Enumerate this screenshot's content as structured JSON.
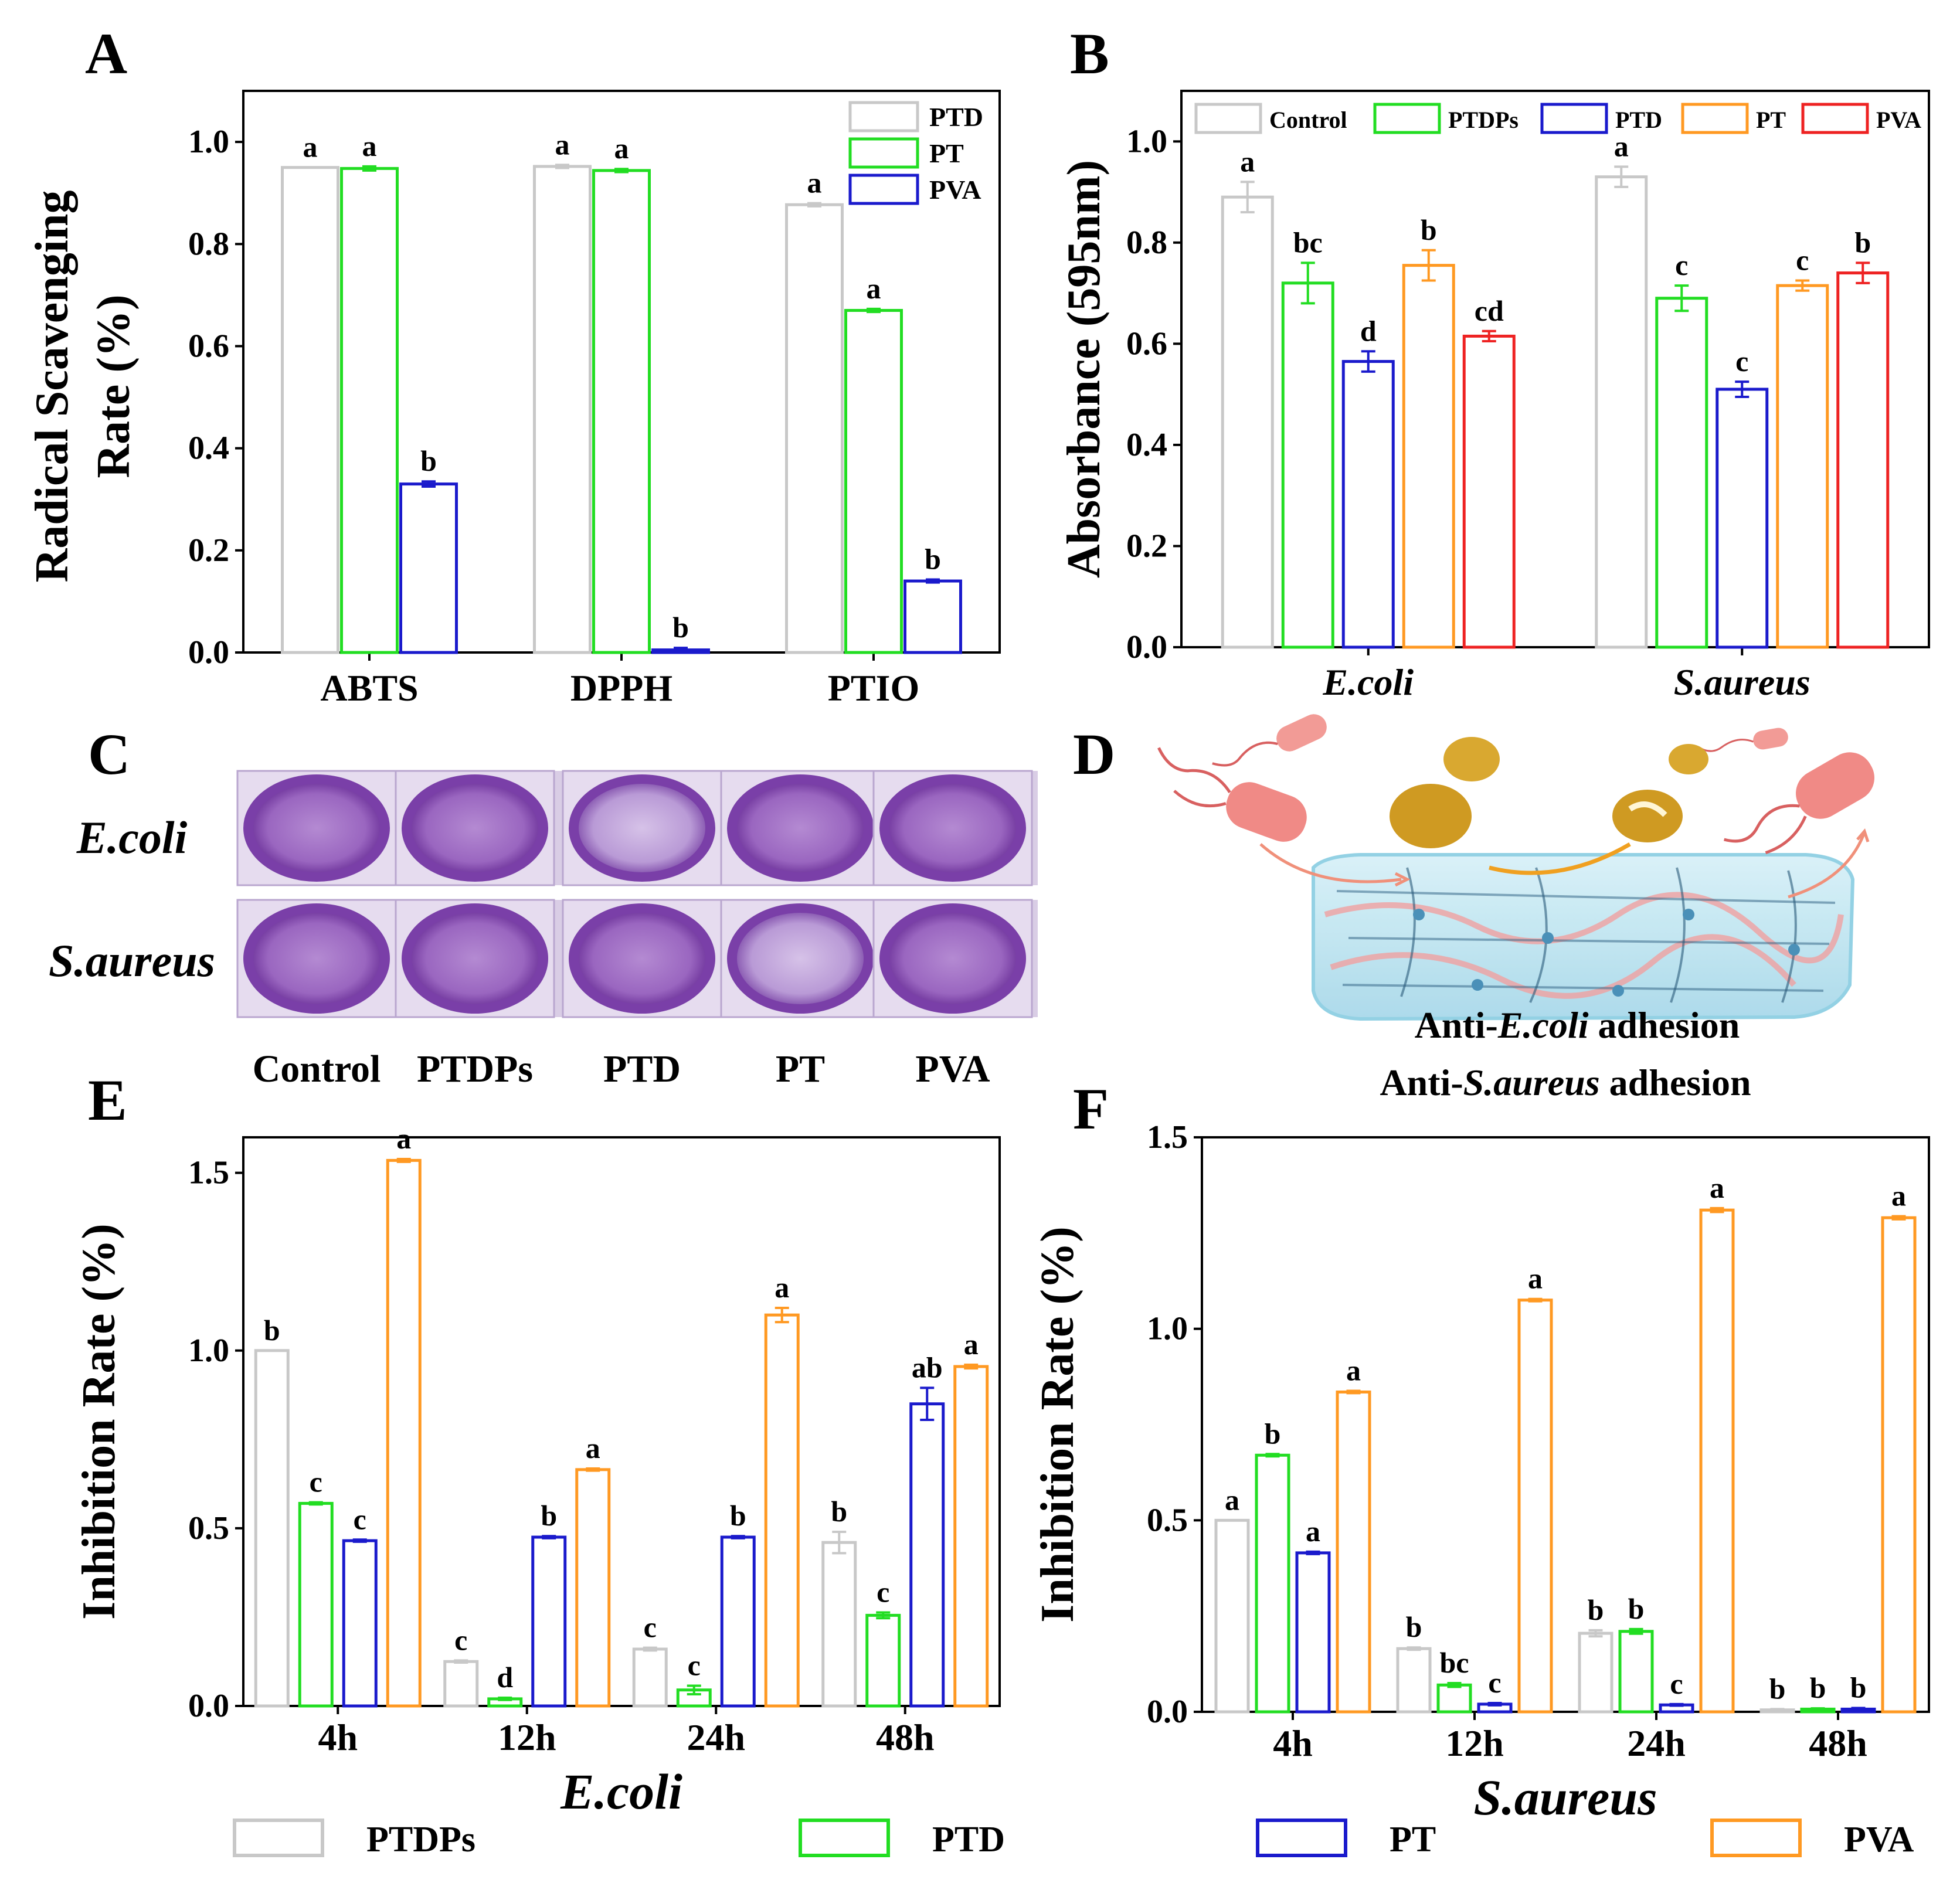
{
  "panel_labels": {
    "a": "A",
    "b": "B",
    "c": "C",
    "d": "D",
    "e": "E",
    "f": "F"
  },
  "colors": {
    "gray": "#c8c8c8",
    "green": "#22dd22",
    "blue": "#1a1acc",
    "orange": "#ff9922",
    "red": "#ee2222",
    "purple": "#8a4fb0",
    "purple_light": "#c9a8dd",
    "purple_dark": "#5f2a8a",
    "hydrogel": "#bfe6f2",
    "bacteria": "#f08a86",
    "particle": "#d9a830"
  },
  "chart_data": [
    {
      "id": "A",
      "type": "bar",
      "ylabel_line1": "Radical Scavenging",
      "ylabel_line2": "Rate (%)",
      "categories": [
        "ABTS",
        "DPPH",
        "PTIO"
      ],
      "ylim": [
        0,
        1.1
      ],
      "yticks": [
        "0.0",
        "0.2",
        "0.4",
        "0.6",
        "0.8",
        "1.0"
      ],
      "legend_position": "top-right",
      "series": [
        {
          "name": "PTD",
          "color": "gray",
          "values": [
            0.95,
            0.952,
            0.877
          ],
          "errors": [
            0,
            0.003,
            0.003
          ],
          "letters": [
            "a",
            "a",
            "a"
          ]
        },
        {
          "name": "PT",
          "color": "green",
          "values": [
            0.948,
            0.944,
            0.67
          ],
          "errors": [
            0.004,
            0.003,
            0.003
          ],
          "letters": [
            "a",
            "a",
            "a"
          ]
        },
        {
          "name": "PVA",
          "color": "blue",
          "values": [
            0.33,
            0.005,
            0.14
          ],
          "errors": [
            0.005,
            0.004,
            0.003
          ],
          "letters": [
            "b",
            "b",
            "b"
          ]
        }
      ]
    },
    {
      "id": "B",
      "type": "bar",
      "ylabel": "Absorbance (595nm)",
      "categories": [
        "E.coli",
        "S.aureus"
      ],
      "ylim": [
        0,
        1.1
      ],
      "yticks": [
        "0.0",
        "0.2",
        "0.4",
        "0.6",
        "0.8",
        "1.0"
      ],
      "legend_position": "top",
      "series": [
        {
          "name": "Control",
          "color": "gray",
          "values": [
            0.89,
            0.93
          ],
          "errors": [
            0.03,
            0.02
          ],
          "letters": [
            "a",
            "a"
          ]
        },
        {
          "name": "PTDPs",
          "color": "green",
          "values": [
            0.72,
            0.69
          ],
          "errors": [
            0.04,
            0.025
          ],
          "letters": [
            "bc",
            "c"
          ]
        },
        {
          "name": "PTD",
          "color": "blue",
          "values": [
            0.565,
            0.51
          ],
          "errors": [
            0.02,
            0.015
          ],
          "letters": [
            "d",
            "c"
          ]
        },
        {
          "name": "PT",
          "color": "orange",
          "values": [
            0.755,
            0.715
          ],
          "errors": [
            0.03,
            0.01
          ],
          "letters": [
            "b",
            "c"
          ]
        },
        {
          "name": "PVA",
          "color": "red",
          "values": [
            0.615,
            0.74
          ],
          "errors": [
            0.01,
            0.02
          ],
          "letters": [
            "cd",
            "b"
          ]
        }
      ]
    },
    {
      "id": "E",
      "type": "bar",
      "ylabel": "Inhibition Rate (%)",
      "xlabel": "E.coli",
      "categories": [
        "4h",
        "12h",
        "24h",
        "48h"
      ],
      "ylim": [
        0,
        1.6
      ],
      "yticks": [
        "0.0",
        "0.5",
        "1.0",
        "1.5"
      ],
      "series": [
        {
          "name": "PTDPs",
          "color": "gray",
          "values": [
            1.0,
            0.125,
            0.16,
            0.46
          ],
          "errors": [
            0,
            0.003,
            0.004,
            0.03
          ],
          "letters": [
            "b",
            "c",
            "c",
            "b"
          ]
        },
        {
          "name": "PTD",
          "color": "green",
          "values": [
            0.57,
            0.02,
            0.045,
            0.255
          ],
          "errors": [
            0.003,
            0.003,
            0.012,
            0.008
          ],
          "letters": [
            "c",
            "d",
            "c",
            "c"
          ]
        },
        {
          "name": "PT",
          "color": "blue",
          "values": [
            0.465,
            0.475,
            0.475,
            0.85
          ],
          "errors": [
            0.003,
            0.003,
            0.003,
            0.045
          ],
          "letters": [
            "c",
            "b",
            "b",
            "ab"
          ]
        },
        {
          "name": "PVA",
          "color": "orange",
          "values": [
            1.535,
            0.665,
            1.1,
            0.955
          ],
          "errors": [
            0.004,
            0.003,
            0.02,
            0.005
          ],
          "letters": [
            "a",
            "a",
            "a",
            "a"
          ]
        }
      ]
    },
    {
      "id": "F",
      "type": "bar",
      "ylabel": "Inhibition Rate (%)",
      "xlabel": "S.aureus",
      "categories": [
        "4h",
        "12h",
        "24h",
        "48h"
      ],
      "ylim": [
        0,
        1.5
      ],
      "yticks": [
        "0.0",
        "0.5",
        "1.0",
        "1.5"
      ],
      "series": [
        {
          "name": "PTDPs",
          "color": "gray",
          "values": [
            0.5,
            0.165,
            0.205,
            0.005
          ],
          "errors": [
            0,
            0.003,
            0.008,
            0.002
          ],
          "letters": [
            "a",
            "b",
            "b",
            "b"
          ]
        },
        {
          "name": "PTD",
          "color": "green",
          "values": [
            0.67,
            0.07,
            0.21,
            0.007
          ],
          "errors": [
            0.003,
            0.005,
            0.006,
            0.002
          ],
          "letters": [
            "b",
            "bc",
            "b",
            "b"
          ]
        },
        {
          "name": "PT",
          "color": "blue",
          "values": [
            0.415,
            0.02,
            0.018,
            0.007
          ],
          "errors": [
            0.003,
            0.003,
            0.002,
            0.003
          ],
          "letters": [
            "a",
            "c",
            "c",
            "b"
          ]
        },
        {
          "name": "PVA",
          "color": "orange",
          "values": [
            0.835,
            1.075,
            1.31,
            1.29
          ],
          "errors": [
            0.003,
            0.003,
            0.005,
            0.004
          ],
          "letters": [
            "a",
            "a",
            "a",
            "a"
          ]
        }
      ]
    }
  ],
  "bottom_legend": [
    {
      "name": "PTDPs",
      "color": "gray"
    },
    {
      "name": "PTD",
      "color": "green"
    },
    {
      "name": "PT",
      "color": "blue"
    },
    {
      "name": "PVA",
      "color": "orange"
    }
  ],
  "panel_c": {
    "row_labels": [
      "E.coli",
      "S.aureus"
    ],
    "column_labels": [
      "Control",
      "PTDPs",
      "PTD",
      "PT",
      "PVA"
    ]
  },
  "panel_d": {
    "caption_line1_prefix": "Anti-",
    "caption_line1_italic": "E.coli",
    "caption_line1_suffix": " adhesion",
    "caption_line2_prefix": "Anti-",
    "caption_line2_italic": "S.aureus",
    "caption_line2_suffix": " adhesion"
  }
}
